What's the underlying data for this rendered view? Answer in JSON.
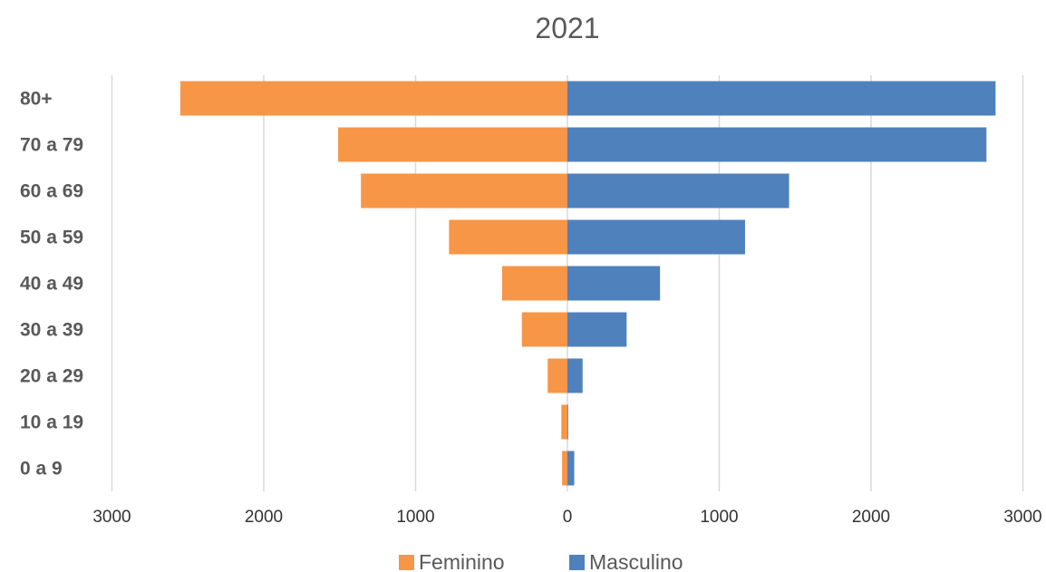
{
  "chart_data": {
    "type": "bar",
    "title": "2021",
    "orientation": "horizontal",
    "categories": [
      "80+",
      "70 a 79",
      "60 a 69",
      "50 a 59",
      "40 a 49",
      "30 a 39",
      "20 a 29",
      "10 a 19",
      "0 a 9"
    ],
    "series": [
      {
        "name": "Feminino",
        "color": "#F79646",
        "side": "left",
        "values": [
          2550,
          1510,
          1360,
          780,
          430,
          300,
          130,
          40,
          35
        ]
      },
      {
        "name": "Masculino",
        "color": "#4F81BD",
        "side": "right",
        "values": [
          2820,
          2760,
          1460,
          1170,
          610,
          390,
          100,
          5,
          45
        ]
      }
    ],
    "x_ticks": [
      3000,
      2000,
      1000,
      0,
      1000,
      2000,
      3000
    ],
    "xlim": [
      -3000,
      3000
    ],
    "grid": true,
    "legend_position": "bottom"
  }
}
